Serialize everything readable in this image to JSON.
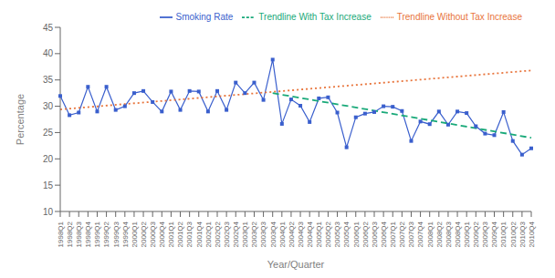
{
  "chart_data": {
    "type": "line",
    "xlabel": "Year/Quarter",
    "ylabel": "Percentage",
    "categories": [
      "1998Q1",
      "1998Q2",
      "1998Q3",
      "1998Q4",
      "1999Q1",
      "1999Q2",
      "1999Q3",
      "1999Q4",
      "2000Q1",
      "2000Q2",
      "2000Q3",
      "2000Q4",
      "2001Q1",
      "2001Q2",
      "2001Q3",
      "2001Q4",
      "2002Q1",
      "2002Q2",
      "2002Q3",
      "2002Q4",
      "2003Q1",
      "2003Q2",
      "2003Q3",
      "2003Q4",
      "2004Q1",
      "2004Q2",
      "2004Q3",
      "2004Q4",
      "2005Q1",
      "2005Q2",
      "2005Q3",
      "2005Q4",
      "2006Q1",
      "2006Q2",
      "2006Q3",
      "2006Q4",
      "2007Q1",
      "2007Q2",
      "2007Q3",
      "2007Q4",
      "2008Q1",
      "2008Q2",
      "2008Q3",
      "2008Q4",
      "2009Q1",
      "2009Q2",
      "2009Q3",
      "2009Q4",
      "2010Q1",
      "2010Q2",
      "2010Q3",
      "2010Q4"
    ],
    "series": [
      {
        "name": "Smoking Rate",
        "color": "#3a5fcd",
        "marker": "square",
        "line_style": "solid",
        "values": [
          31.95,
          28.3,
          28.8,
          33.7,
          29.0,
          33.7,
          29.3,
          30.0,
          32.5,
          32.9,
          30.8,
          29.0,
          32.8,
          29.3,
          32.9,
          32.8,
          29.0,
          32.9,
          29.3,
          34.5,
          32.5,
          34.5,
          31.2,
          38.86,
          26.65,
          31.3,
          30.1,
          27.0,
          31.5,
          31.7,
          28.8,
          22.2,
          27.9,
          28.6,
          28.9,
          30.0,
          29.9,
          29.1,
          23.4,
          27.1,
          26.6,
          29.0,
          26.5,
          29.0,
          28.7,
          26.2,
          24.8,
          24.5,
          28.9,
          23.4,
          20.8,
          22.0
        ]
      },
      {
        "name": "Trendline Without Tax Increase",
        "color": "#e8743b",
        "marker": "none",
        "line_style": "dotted",
        "values": [
          29.4,
          null,
          null,
          null,
          null,
          null,
          null,
          null,
          null,
          null,
          null,
          null,
          null,
          null,
          null,
          null,
          null,
          null,
          null,
          null,
          null,
          null,
          null,
          null,
          null,
          null,
          null,
          null,
          null,
          null,
          null,
          null,
          null,
          null,
          null,
          null,
          null,
          null,
          null,
          null,
          null,
          null,
          null,
          null,
          null,
          null,
          null,
          null,
          null,
          null,
          null,
          36.8
        ]
      },
      {
        "name": "Trendline With Tax Increase",
        "color": "#19a979",
        "marker": "none",
        "line_style": "dashed",
        "values": [
          null,
          null,
          null,
          null,
          null,
          null,
          null,
          null,
          null,
          null,
          null,
          null,
          null,
          null,
          null,
          null,
          null,
          null,
          null,
          null,
          null,
          null,
          null,
          32.5,
          null,
          null,
          null,
          null,
          null,
          null,
          null,
          null,
          null,
          null,
          null,
          null,
          null,
          null,
          null,
          null,
          null,
          null,
          null,
          null,
          null,
          null,
          null,
          null,
          null,
          null,
          null,
          24.0
        ]
      }
    ],
    "ylim": [
      10,
      45
    ],
    "yticks": [
      10,
      15,
      20,
      25,
      30,
      35,
      40,
      45
    ],
    "legend": "upper right",
    "grid": false
  }
}
